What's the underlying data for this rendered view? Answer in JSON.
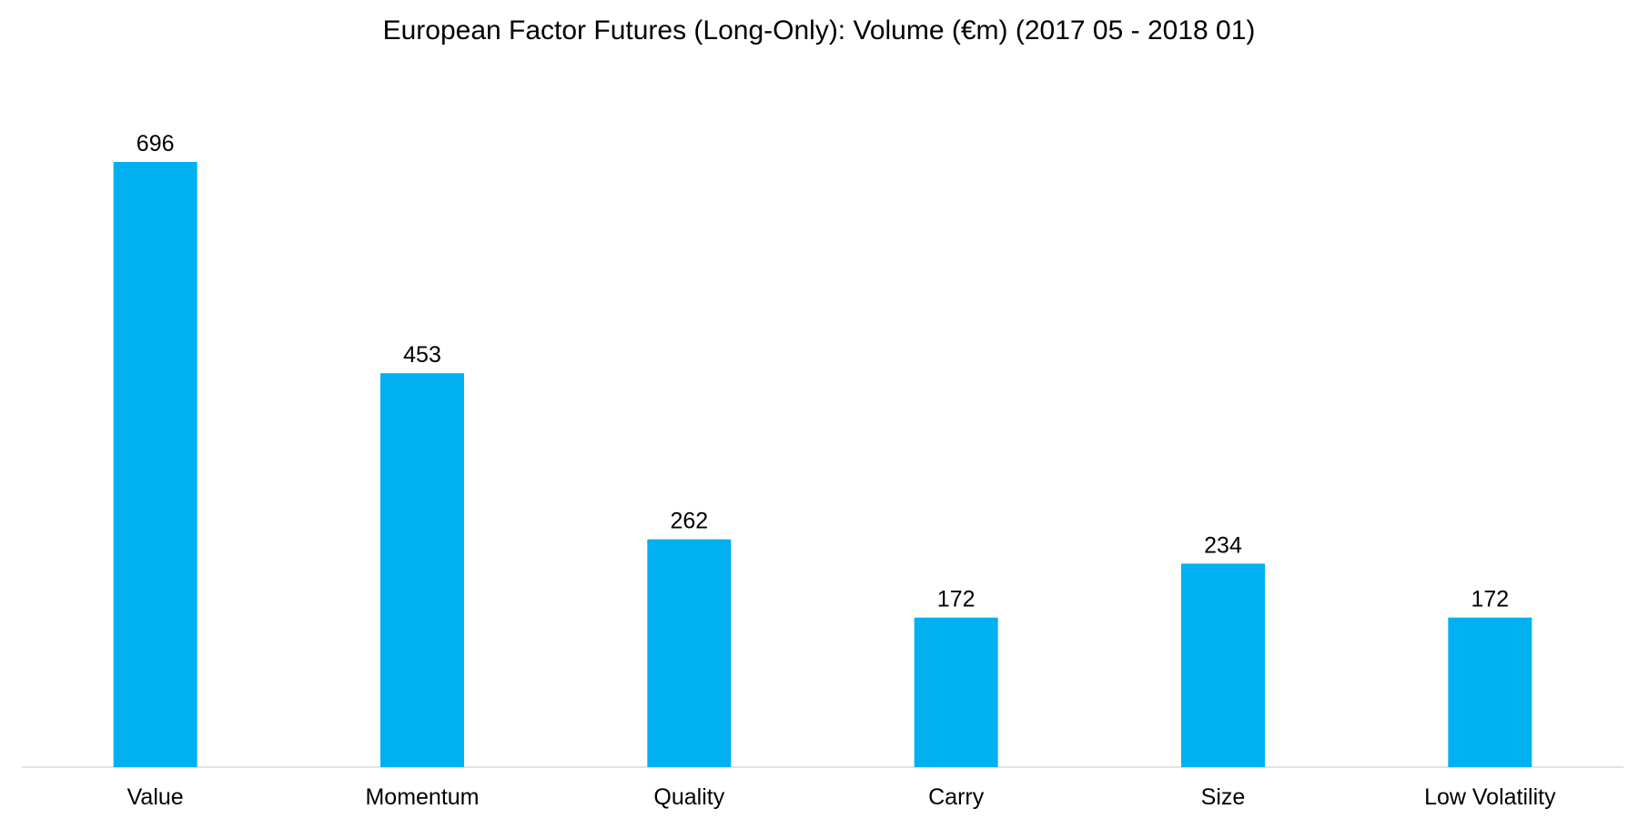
{
  "chart_data": {
    "type": "bar",
    "title": "European Factor Futures (Long-Only): Volume (€m) (2017 05 - 2018 01)",
    "categories": [
      "Value",
      "Momentum",
      "Quality",
      "Carry",
      "Size",
      "Low Volatility"
    ],
    "values": [
      696,
      453,
      262,
      172,
      234,
      172
    ],
    "data_labels": [
      "696",
      "453",
      "262",
      "172",
      "234",
      "172"
    ],
    "xlabel": "",
    "ylabel": "",
    "ylim": [
      0,
      700
    ],
    "grid": false,
    "legend": "none",
    "bar_color": "#00B0F0",
    "axis_color": "#D9D9D9"
  }
}
